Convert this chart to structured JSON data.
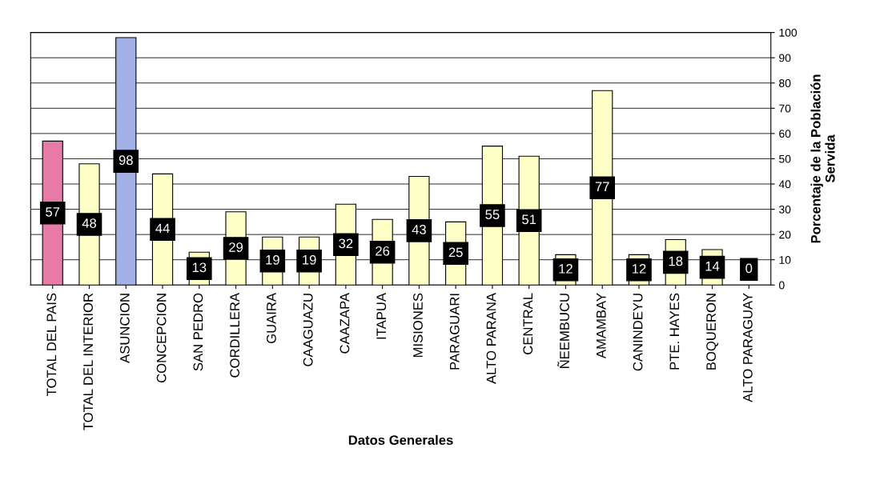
{
  "chart_data": {
    "type": "bar",
    "xlabel": "Datos Generales",
    "ylabel": "Porcentaje de la Población\nServida",
    "categories": [
      "TOTAL DEL PAIS",
      "TOTAL DEL INTERIOR",
      "ASUNCION",
      "CONCEPCION",
      "SAN PEDRO",
      "CORDILLERA",
      "GUAIRA",
      "CAAGUAZU",
      "CAAZAPA",
      "ITAPUA",
      "MISIONES",
      "PARAGUARI",
      "ALTO PARANA",
      "CENTRAL",
      "ÑEEMBUCU",
      "AMAMBAY",
      "CANINDEYU",
      "PTE. HAYES",
      "BOQUERON",
      "ALTO PARAGUAY"
    ],
    "values": [
      57,
      48,
      98,
      44,
      13,
      29,
      19,
      19,
      32,
      26,
      43,
      25,
      55,
      51,
      12,
      77,
      12,
      18,
      14,
      0
    ],
    "colors": [
      "#e87aa8",
      "#ffffc8",
      "#a3b0e6",
      "#ffffc8",
      "#ffffc8",
      "#ffffc8",
      "#ffffc8",
      "#ffffc8",
      "#ffffc8",
      "#ffffc8",
      "#ffffc8",
      "#ffffc8",
      "#ffffc8",
      "#ffffc8",
      "#ffffc8",
      "#ffffc8",
      "#ffffc8",
      "#ffffc8",
      "#ffffc8",
      "#ffffc8"
    ],
    "ylim": [
      0,
      100
    ],
    "yticks": [
      0,
      10,
      20,
      30,
      40,
      50,
      60,
      70,
      80,
      90,
      100
    ],
    "grid": "y",
    "data_labels": true,
    "legend": false
  }
}
